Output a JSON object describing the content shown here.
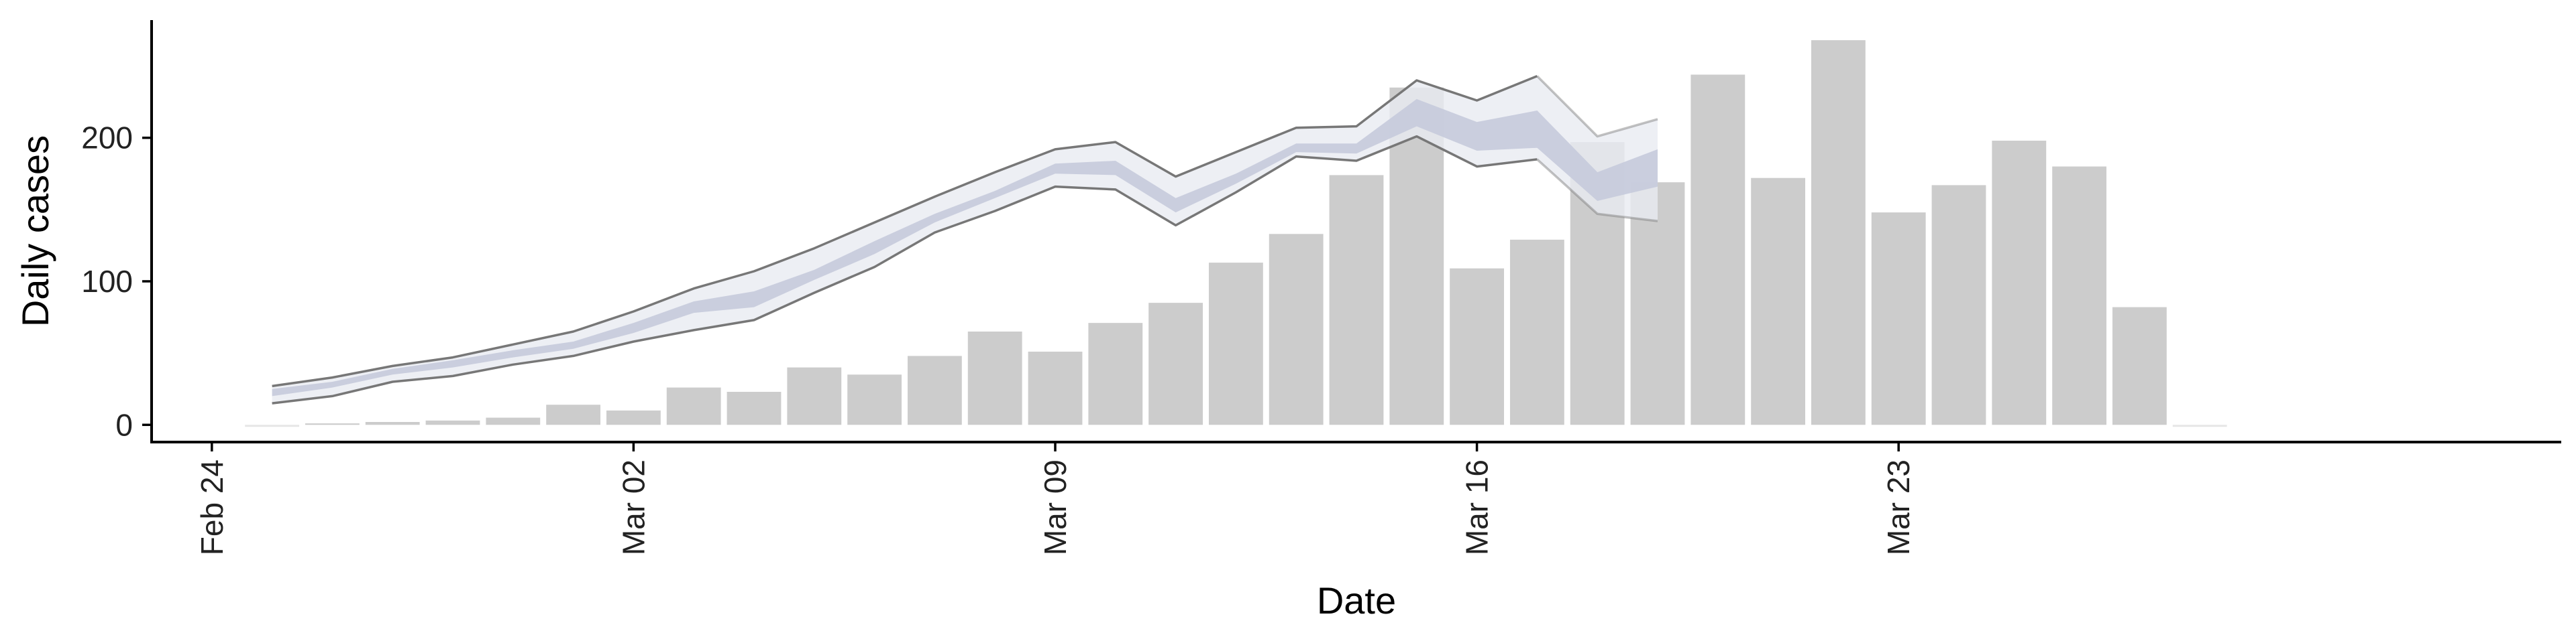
{
  "chart_data": {
    "type": "bar",
    "xlabel": "Date",
    "ylabel": "Daily cases",
    "ylim": [
      -12,
      282
    ],
    "yticks": [
      0,
      100,
      200
    ],
    "xticks": [
      {
        "date": "2020-02-24",
        "label": "Feb 24"
      },
      {
        "date": "2020-03-02",
        "label": "Mar 02"
      },
      {
        "date": "2020-03-09",
        "label": "Mar 09"
      },
      {
        "date": "2020-03-16",
        "label": "Mar 16"
      },
      {
        "date": "2020-03-23",
        "label": "Mar 23"
      }
    ],
    "xlim": [
      "2020-02-23",
      "2020-04-03"
    ],
    "grid": false,
    "colors": {
      "bars": "#cccccc",
      "inner_band": "#c5cadb",
      "outer_band": "#e9ebf1",
      "band_edge": "#777777",
      "axis": "#000000"
    },
    "bars": {
      "dates": [
        "2020-02-25",
        "2020-02-26",
        "2020-02-27",
        "2020-02-28",
        "2020-02-29",
        "2020-03-01",
        "2020-03-02",
        "2020-03-03",
        "2020-03-04",
        "2020-03-05",
        "2020-03-06",
        "2020-03-07",
        "2020-03-08",
        "2020-03-09",
        "2020-03-10",
        "2020-03-11",
        "2020-03-12",
        "2020-03-13",
        "2020-03-14",
        "2020-03-15",
        "2020-03-16",
        "2020-03-17",
        "2020-03-18",
        "2020-03-19",
        "2020-03-20",
        "2020-03-21",
        "2020-03-22",
        "2020-03-23",
        "2020-03-24",
        "2020-03-25",
        "2020-03-26",
        "2020-03-27",
        "2020-03-28"
      ],
      "values": [
        0,
        1,
        2,
        3,
        5,
        14,
        10,
        26,
        23,
        40,
        35,
        48,
        65,
        51,
        71,
        85,
        113,
        133,
        174,
        235,
        109,
        129,
        197,
        169,
        244,
        172,
        268,
        148,
        167,
        198,
        180,
        82,
        0
      ]
    },
    "estimate": {
      "dates": [
        "2020-02-25",
        "2020-02-26",
        "2020-02-27",
        "2020-02-28",
        "2020-02-29",
        "2020-03-01",
        "2020-03-02",
        "2020-03-03",
        "2020-03-04",
        "2020-03-05",
        "2020-03-06",
        "2020-03-07",
        "2020-03-08",
        "2020-03-09",
        "2020-03-10",
        "2020-03-11",
        "2020-03-12",
        "2020-03-13",
        "2020-03-14",
        "2020-03-15",
        "2020-03-16",
        "2020-03-17",
        "2020-03-18",
        "2020-03-19"
      ],
      "outer_lower": [
        15,
        20,
        30,
        34,
        42,
        48,
        58,
        66,
        73,
        92,
        110,
        134,
        149,
        166,
        164,
        139,
        162,
        187,
        184,
        201,
        180,
        185,
        147,
        142
      ],
      "inner_lower": [
        20,
        26,
        35,
        40,
        47,
        53,
        64,
        78,
        82,
        101,
        119,
        141,
        158,
        175,
        174,
        148,
        168,
        190,
        189,
        208,
        191,
        193,
        156,
        166
      ],
      "inner_upper": [
        25,
        30,
        39,
        45,
        52,
        58,
        71,
        86,
        93,
        108,
        128,
        147,
        163,
        182,
        184,
        158,
        175,
        196,
        196,
        227,
        211,
        219,
        176,
        192
      ],
      "outer_upper": [
        27,
        33,
        41,
        47,
        56,
        65,
        79,
        95,
        107,
        123,
        141,
        159,
        176,
        192,
        197,
        173,
        190,
        207,
        208,
        240,
        226,
        243,
        201,
        213
      ],
      "dark_edge_until": "2020-03-17"
    }
  }
}
